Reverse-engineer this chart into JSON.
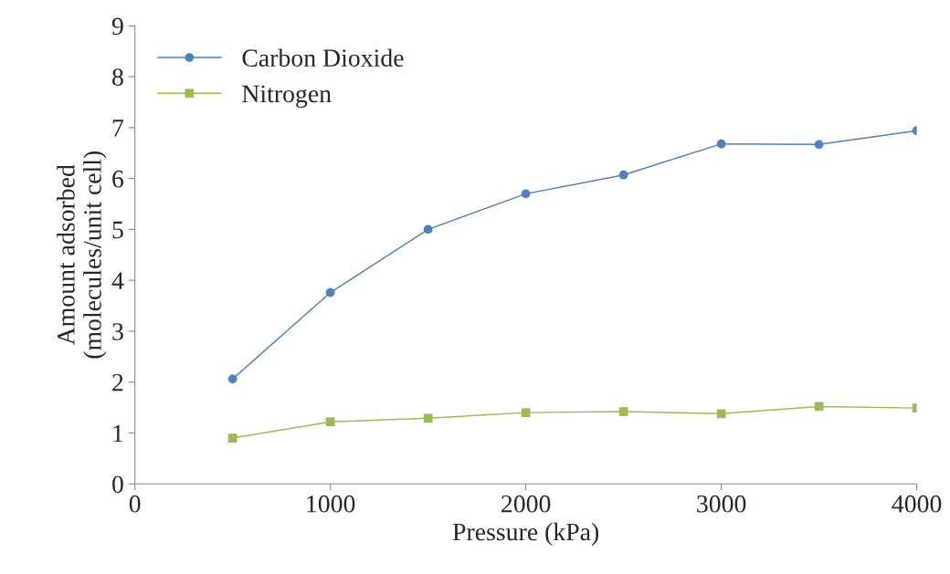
{
  "chart_data": {
    "type": "line",
    "xlabel": "Pressure (kPa)",
    "ylabel": "Amount adsorbed\n(molecules/unit cell)",
    "x": [
      500,
      1000,
      1500,
      2000,
      2500,
      3000,
      3500,
      4000
    ],
    "series": [
      {
        "name": "Carbon Dioxide",
        "color": "#4f81bd",
        "marker": "circle",
        "values": [
          2.06,
          3.76,
          5.0,
          5.7,
          6.07,
          6.68,
          6.67,
          6.94
        ]
      },
      {
        "name": "Nitrogen",
        "color": "#9bbb59",
        "marker": "square",
        "values": [
          0.9,
          1.22,
          1.29,
          1.4,
          1.42,
          1.38,
          1.52,
          1.49
        ]
      }
    ],
    "xlim": [
      0,
      4000
    ],
    "xticks": [
      0,
      1000,
      2000,
      3000,
      4000
    ],
    "ylim": [
      0,
      9
    ],
    "yticks": [
      0,
      1,
      2,
      3,
      4,
      5,
      6,
      7,
      8,
      9
    ],
    "grid": false,
    "legend": "top left",
    "line_style": "solid"
  }
}
